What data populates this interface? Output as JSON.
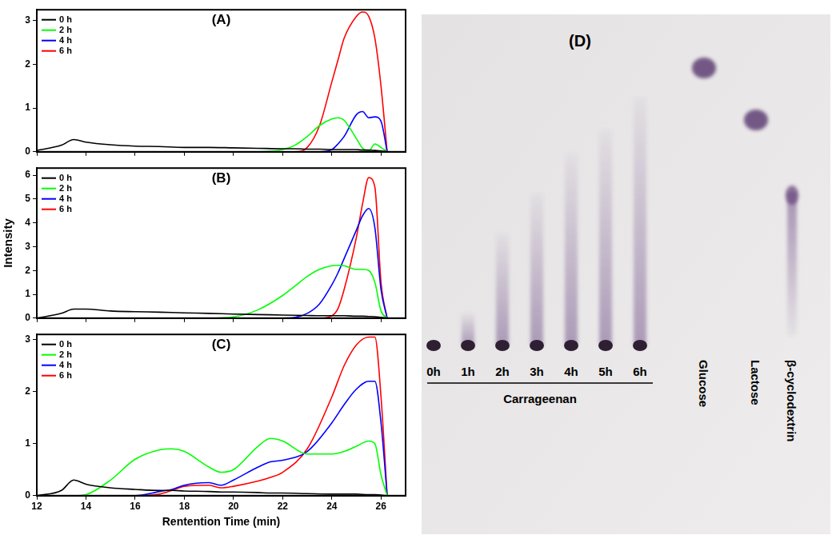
{
  "chart_data": [
    {
      "type": "line",
      "title": "(A)",
      "x": [
        12,
        13,
        13.5,
        14,
        15,
        16,
        17,
        18,
        19,
        20,
        21,
        22,
        22.5,
        23,
        23.5,
        24,
        24.25,
        24.5,
        25,
        25.25,
        25.5,
        25.75,
        26,
        26.25
      ],
      "series": [
        {
          "name": "0 h",
          "color": "#000000",
          "values": [
            0.03,
            0.15,
            0.28,
            0.22,
            0.16,
            0.13,
            0.12,
            0.1,
            0.1,
            0.09,
            0.08,
            0.07,
            0.07,
            0.06,
            0.06,
            0.05,
            0.05,
            0.05,
            0.05,
            0.04,
            0.04,
            0.03,
            0.02,
            0
          ]
        },
        {
          "name": "2 h",
          "color": "#00ff00",
          "values": [
            0,
            0,
            0,
            0,
            0,
            0,
            0,
            0,
            0,
            0,
            0,
            0.05,
            0.15,
            0.35,
            0.6,
            0.75,
            0.78,
            0.72,
            0.3,
            0.08,
            0.02,
            0.18,
            0.1,
            0
          ]
        },
        {
          "name": "4 h",
          "color": "#0000ff",
          "values": [
            0,
            0,
            0,
            0,
            0,
            0,
            0,
            0,
            0,
            0,
            0,
            0,
            0,
            0,
            0,
            0.05,
            0.18,
            0.35,
            0.85,
            0.92,
            0.78,
            0.8,
            0.7,
            0
          ]
        },
        {
          "name": "6 h",
          "color": "#ff0000",
          "values": [
            0,
            0,
            0,
            0,
            0,
            0,
            0,
            0,
            0,
            0,
            0,
            0,
            0,
            0.1,
            0.6,
            1.6,
            2.1,
            2.6,
            3.1,
            3.2,
            3.1,
            2.6,
            1.5,
            0
          ]
        }
      ],
      "xlim": [
        12,
        27
      ],
      "xticks": [
        12,
        14,
        16,
        18,
        20,
        22,
        24,
        26
      ],
      "ylim": [
        0,
        3.25
      ],
      "yticks": [
        0,
        1,
        2,
        3
      ],
      "grid": false,
      "legend": "top-left",
      "tick_labels": "y"
    },
    {
      "type": "line",
      "title": "(B)",
      "y_label": "Intensity",
      "x": [
        12,
        13,
        13.5,
        14,
        15,
        16,
        17,
        18,
        19,
        20,
        21,
        22,
        22.5,
        23,
        23.5,
        24,
        24.25,
        24.5,
        25,
        25.25,
        25.5,
        25.75,
        26,
        26.25
      ],
      "series": [
        {
          "name": "0 h",
          "color": "#000000",
          "values": [
            0,
            0.2,
            0.38,
            0.38,
            0.3,
            0.27,
            0.25,
            0.22,
            0.2,
            0.17,
            0.15,
            0.13,
            0.12,
            0.11,
            0.1,
            0.1,
            0.1,
            0.1,
            0.08,
            0.08,
            0.07,
            0.06,
            0.03,
            0
          ]
        },
        {
          "name": "2 h",
          "color": "#00ff00",
          "values": [
            0,
            0,
            0,
            0,
            0,
            0,
            0,
            0,
            0,
            0.05,
            0.35,
            0.95,
            1.35,
            1.75,
            2.05,
            2.2,
            2.22,
            2.2,
            2.05,
            2.05,
            2.0,
            1.5,
            0.3,
            0
          ]
        },
        {
          "name": "4 h",
          "color": "#0000ff",
          "values": [
            0,
            0,
            0,
            0,
            0,
            0,
            0,
            0,
            0,
            0,
            0,
            0,
            0.03,
            0.2,
            0.6,
            1.4,
            1.9,
            2.5,
            3.7,
            4.3,
            4.6,
            3.8,
            1.2,
            0
          ]
        },
        {
          "name": "6 h",
          "color": "#ff0000",
          "values": [
            0,
            0,
            0,
            0,
            0,
            0,
            0,
            0,
            0,
            0,
            0,
            0,
            0,
            0,
            0,
            0.1,
            0.4,
            1.2,
            3.4,
            4.8,
            5.9,
            5.5,
            1.5,
            0
          ]
        }
      ],
      "xlim": [
        12,
        27
      ],
      "xticks": [
        12,
        14,
        16,
        18,
        20,
        22,
        24,
        26
      ],
      "ylim": [
        0,
        6.3
      ],
      "yticks": [
        0,
        1,
        2,
        3,
        4,
        5,
        6
      ],
      "grid": false,
      "legend": "top-left",
      "tick_labels": "y"
    },
    {
      "type": "line",
      "title": "(C)",
      "x_label": "Rentention Time (min)",
      "x": [
        12,
        13,
        13.5,
        14,
        15,
        16,
        17,
        17.5,
        18,
        19,
        19.5,
        20,
        21,
        21.5,
        22,
        23,
        24,
        24.5,
        25,
        25.5,
        25.75,
        26,
        26.25
      ],
      "series": [
        {
          "name": "0 h",
          "color": "#000000",
          "values": [
            0,
            0.1,
            0.3,
            0.22,
            0.15,
            0.12,
            0.1,
            0.1,
            0.09,
            0.08,
            0.07,
            0.07,
            0.06,
            0.05,
            0.05,
            0.04,
            0.03,
            0.03,
            0.03,
            0.02,
            0.02,
            0.01,
            0
          ]
        },
        {
          "name": "2 h",
          "color": "#00ff00",
          "values": [
            0,
            0,
            0,
            0.02,
            0.3,
            0.7,
            0.88,
            0.9,
            0.85,
            0.55,
            0.45,
            0.5,
            0.95,
            1.1,
            1.05,
            0.8,
            0.8,
            0.85,
            0.95,
            1.05,
            1.0,
            0.4,
            0
          ]
        },
        {
          "name": "4 h",
          "color": "#0000ff",
          "values": [
            0,
            0,
            0,
            0,
            0,
            0,
            0.08,
            0.12,
            0.2,
            0.25,
            0.2,
            0.3,
            0.55,
            0.65,
            0.68,
            0.85,
            1.4,
            1.75,
            2.05,
            2.2,
            2.2,
            1.4,
            0
          ]
        },
        {
          "name": "6 h",
          "color": "#ff0000",
          "values": [
            0,
            0,
            0,
            0,
            0,
            0,
            0.03,
            0.1,
            0.18,
            0.2,
            0.15,
            0.18,
            0.28,
            0.35,
            0.45,
            0.9,
            1.9,
            2.5,
            2.9,
            3.05,
            3.05,
            1.9,
            0
          ]
        }
      ],
      "xlim": [
        12,
        27
      ],
      "xticks": [
        12,
        14,
        16,
        18,
        20,
        22,
        24,
        26
      ],
      "ylim": [
        0,
        3.1
      ],
      "yticks": [
        0,
        1,
        2,
        3
      ],
      "grid": false,
      "legend": "top-left"
    }
  ],
  "tlc_panel": {
    "title": "(D)",
    "carrageenan_lanes": [
      "0h",
      "1h",
      "2h",
      "3h",
      "4h",
      "5h",
      "6h"
    ],
    "group_label": "Carrageenan",
    "standards": [
      "Glucose",
      "Lactose",
      "β-cyclodextrin"
    ]
  }
}
